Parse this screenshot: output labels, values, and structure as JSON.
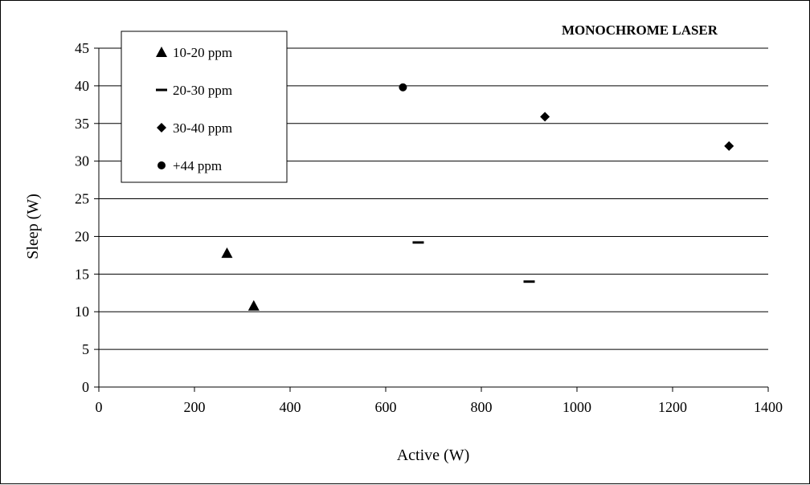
{
  "chart_data": {
    "type": "scatter",
    "title": "MONOCHROME LASER",
    "xlabel": "Active (W)",
    "ylabel": "Sleep (W)",
    "xlim": [
      0,
      1400
    ],
    "ylim": [
      0,
      45
    ],
    "xticks": [
      0,
      200,
      400,
      600,
      800,
      1000,
      1200,
      1400
    ],
    "yticks": [
      0,
      5,
      10,
      15,
      20,
      25,
      30,
      35,
      40,
      45
    ],
    "grid": "horizontal",
    "legend_position": "top-left",
    "series": [
      {
        "name": "10-20 ppm",
        "marker": "triangle",
        "points": [
          [
            268,
            17.8
          ],
          [
            324,
            10.8
          ]
        ]
      },
      {
        "name": "20-30 ppm",
        "marker": "dash",
        "points": [
          [
            668,
            19.2
          ],
          [
            900,
            14.0
          ]
        ]
      },
      {
        "name": "30-40 ppm",
        "marker": "diamond",
        "points": [
          [
            933,
            35.9
          ],
          [
            1318,
            32.0
          ]
        ]
      },
      {
        "name": "+44 ppm",
        "marker": "circle",
        "points": [
          [
            636,
            39.8
          ]
        ]
      }
    ],
    "marker_color": "#000000"
  }
}
